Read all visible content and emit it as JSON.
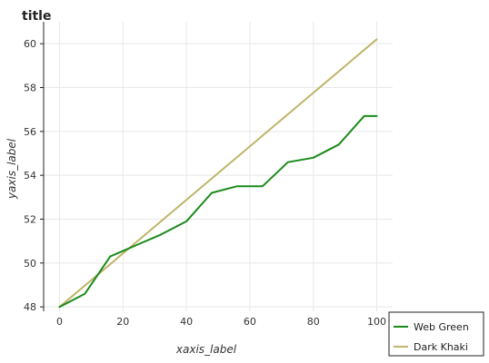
{
  "chart_data": {
    "type": "line",
    "title": "title",
    "xlabel": "xaxis_label",
    "ylabel": "yaxis_label",
    "xlim": [
      -5,
      105
    ],
    "ylim": [
      47.8,
      61
    ],
    "xticks": [
      0,
      20,
      40,
      60,
      80,
      100
    ],
    "yticks": [
      48,
      50,
      52,
      54,
      56,
      58,
      60
    ],
    "grid": true,
    "legend_position": "bottom-right",
    "series": [
      {
        "name": "Web Green",
        "color": "#1a8a1a",
        "x": [
          0,
          8,
          16,
          24,
          32,
          40,
          48,
          56,
          64,
          72,
          80,
          88,
          96,
          100
        ],
        "y": [
          48.0,
          48.6,
          50.3,
          50.8,
          51.3,
          51.9,
          53.2,
          53.5,
          53.5,
          54.6,
          54.8,
          55.4,
          56.7,
          56.7
        ]
      },
      {
        "name": "Dark Khaki",
        "color": "#c0b56a",
        "x": [
          0,
          100
        ],
        "y": [
          48.0,
          60.2
        ]
      }
    ]
  }
}
